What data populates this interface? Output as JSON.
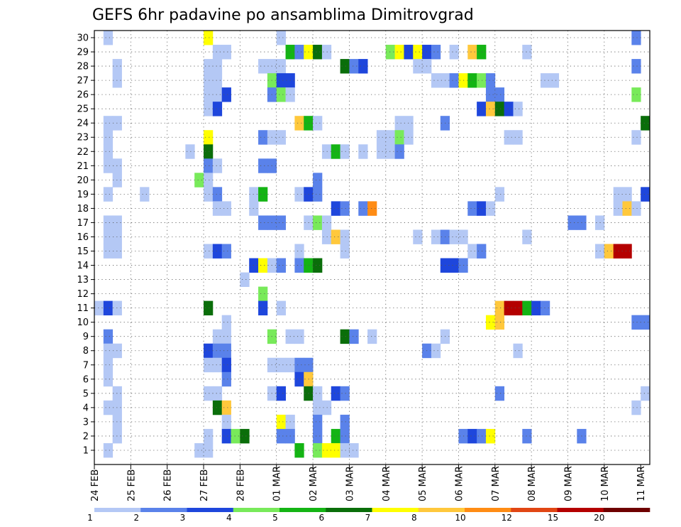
{
  "chart_data": {
    "type": "heatmap",
    "title": "GEFS 6hr padavine po ansamblima Dimitrovgrad",
    "xlabel": "",
    "ylabel": "",
    "x_tick_labels": [
      "24 FEB",
      "25 FEB",
      "26 FEB",
      "27 FEB",
      "28 FEB",
      "01 MAR",
      "02 MAR",
      "03 MAR",
      "04 MAR",
      "05 MAR",
      "06 MAR",
      "07 MAR",
      "08 MAR",
      "09 MAR",
      "10 MAR",
      "11 MAR"
    ],
    "y_tick_labels": [
      "1",
      "2",
      "3",
      "4",
      "5",
      "6",
      "7",
      "8",
      "9",
      "10",
      "11",
      "12",
      "13",
      "14",
      "15",
      "16",
      "17",
      "18",
      "19",
      "20",
      "21",
      "22",
      "23",
      "24",
      "25",
      "26",
      "27",
      "28",
      "29",
      "30"
    ],
    "y_range": [
      0,
      30
    ],
    "x_steps_6h": 61,
    "grid": "dotted",
    "colorbar": {
      "labels": [
        "1",
        "2",
        "3",
        "4",
        "5",
        "6",
        "7",
        "8",
        "10",
        "12",
        "15",
        "20"
      ],
      "colors": [
        "#b4c8f5",
        "#5a82ea",
        "#1e46dc",
        "#78ea5a",
        "#14b414",
        "#0a6e0a",
        "#ffff00",
        "#ffc83c",
        "#ff8c14",
        "#e14614",
        "#b40000",
        "#6e0000"
      ]
    },
    "levels": [
      "#ffffff",
      "#b4c8f5",
      "#5a82ea",
      "#1e46dc",
      "#78ea5a",
      "#14b414",
      "#0a6e0a",
      "#ffff00",
      "#ffc83c",
      "#ff8c14",
      "#e14614",
      "#b40000",
      "#6e0000"
    ],
    "cells": [
      [
        30,
        1,
        1
      ],
      [
        30,
        12,
        7
      ],
      [
        30,
        20,
        1
      ],
      [
        30,
        59,
        2
      ],
      [
        29,
        13,
        1
      ],
      [
        29,
        14,
        1
      ],
      [
        29,
        21,
        5
      ],
      [
        29,
        22,
        2
      ],
      [
        29,
        23,
        7
      ],
      [
        29,
        24,
        6
      ],
      [
        29,
        25,
        1
      ],
      [
        29,
        32,
        4
      ],
      [
        29,
        33,
        7
      ],
      [
        29,
        34,
        3
      ],
      [
        29,
        35,
        7
      ],
      [
        29,
        36,
        3
      ],
      [
        29,
        37,
        2
      ],
      [
        29,
        39,
        1
      ],
      [
        29,
        41,
        8
      ],
      [
        29,
        42,
        5
      ],
      [
        29,
        47,
        1
      ],
      [
        28,
        2,
        1
      ],
      [
        28,
        12,
        1
      ],
      [
        28,
        13,
        1
      ],
      [
        28,
        18,
        1
      ],
      [
        28,
        19,
        1
      ],
      [
        28,
        20,
        1
      ],
      [
        28,
        27,
        6
      ],
      [
        28,
        28,
        2
      ],
      [
        28,
        29,
        3
      ],
      [
        28,
        35,
        1
      ],
      [
        28,
        36,
        1
      ],
      [
        28,
        59,
        2
      ],
      [
        27,
        2,
        1
      ],
      [
        27,
        12,
        1
      ],
      [
        27,
        13,
        1
      ],
      [
        27,
        19,
        4
      ],
      [
        27,
        20,
        3
      ],
      [
        27,
        21,
        3
      ],
      [
        27,
        37,
        1
      ],
      [
        27,
        38,
        1
      ],
      [
        27,
        39,
        2
      ],
      [
        27,
        40,
        7
      ],
      [
        27,
        41,
        5
      ],
      [
        27,
        42,
        4
      ],
      [
        27,
        43,
        2
      ],
      [
        27,
        49,
        1
      ],
      [
        27,
        50,
        1
      ],
      [
        26,
        12,
        1
      ],
      [
        26,
        13,
        1
      ],
      [
        26,
        14,
        3
      ],
      [
        26,
        19,
        2
      ],
      [
        26,
        20,
        4
      ],
      [
        26,
        21,
        1
      ],
      [
        26,
        43,
        2
      ],
      [
        26,
        44,
        2
      ],
      [
        26,
        59,
        4
      ],
      [
        25,
        12,
        1
      ],
      [
        25,
        13,
        3
      ],
      [
        25,
        42,
        3
      ],
      [
        25,
        43,
        8
      ],
      [
        25,
        44,
        6
      ],
      [
        25,
        45,
        3
      ],
      [
        25,
        46,
        1
      ],
      [
        24,
        1,
        1
      ],
      [
        24,
        2,
        1
      ],
      [
        24,
        22,
        8
      ],
      [
        24,
        23,
        5
      ],
      [
        24,
        24,
        1
      ],
      [
        24,
        33,
        1
      ],
      [
        24,
        34,
        1
      ],
      [
        24,
        38,
        2
      ],
      [
        24,
        60,
        6
      ],
      [
        23,
        1,
        1
      ],
      [
        23,
        12,
        7
      ],
      [
        23,
        18,
        2
      ],
      [
        23,
        19,
        1
      ],
      [
        23,
        20,
        1
      ],
      [
        23,
        31,
        1
      ],
      [
        23,
        32,
        1
      ],
      [
        23,
        33,
        4
      ],
      [
        23,
        34,
        1
      ],
      [
        23,
        45,
        1
      ],
      [
        23,
        46,
        1
      ],
      [
        23,
        59,
        1
      ],
      [
        22,
        1,
        1
      ],
      [
        22,
        10,
        1
      ],
      [
        22,
        12,
        6
      ],
      [
        22,
        25,
        1
      ],
      [
        22,
        26,
        5
      ],
      [
        22,
        27,
        1
      ],
      [
        22,
        29,
        1
      ],
      [
        22,
        31,
        1
      ],
      [
        22,
        32,
        1
      ],
      [
        22,
        33,
        2
      ],
      [
        21,
        1,
        1
      ],
      [
        21,
        2,
        1
      ],
      [
        21,
        12,
        2
      ],
      [
        21,
        13,
        1
      ],
      [
        21,
        18,
        2
      ],
      [
        21,
        19,
        2
      ],
      [
        20,
        2,
        1
      ],
      [
        20,
        11,
        4
      ],
      [
        20,
        12,
        1
      ],
      [
        20,
        24,
        2
      ],
      [
        19,
        1,
        1
      ],
      [
        19,
        5,
        1
      ],
      [
        19,
        12,
        1
      ],
      [
        19,
        13,
        2
      ],
      [
        19,
        17,
        1
      ],
      [
        19,
        18,
        5
      ],
      [
        19,
        22,
        1
      ],
      [
        19,
        23,
        3
      ],
      [
        19,
        24,
        2
      ],
      [
        19,
        44,
        1
      ],
      [
        19,
        57,
        1
      ],
      [
        19,
        58,
        1
      ],
      [
        19,
        60,
        3
      ],
      [
        18,
        13,
        1
      ],
      [
        18,
        14,
        1
      ],
      [
        18,
        17,
        1
      ],
      [
        18,
        26,
        3
      ],
      [
        18,
        27,
        2
      ],
      [
        18,
        29,
        2
      ],
      [
        18,
        30,
        9
      ],
      [
        18,
        41,
        2
      ],
      [
        18,
        42,
        3
      ],
      [
        18,
        43,
        1
      ],
      [
        18,
        57,
        1
      ],
      [
        18,
        58,
        8
      ],
      [
        18,
        59,
        1
      ],
      [
        17,
        1,
        1
      ],
      [
        17,
        2,
        1
      ],
      [
        17,
        18,
        2
      ],
      [
        17,
        19,
        2
      ],
      [
        17,
        20,
        2
      ],
      [
        17,
        23,
        1
      ],
      [
        17,
        24,
        4
      ],
      [
        17,
        25,
        1
      ],
      [
        17,
        52,
        2
      ],
      [
        17,
        53,
        2
      ],
      [
        17,
        55,
        1
      ],
      [
        16,
        1,
        1
      ],
      [
        16,
        2,
        1
      ],
      [
        16,
        25,
        1
      ],
      [
        16,
        26,
        8
      ],
      [
        16,
        27,
        1
      ],
      [
        16,
        35,
        1
      ],
      [
        16,
        37,
        1
      ],
      [
        16,
        38,
        2
      ],
      [
        16,
        39,
        1
      ],
      [
        16,
        40,
        1
      ],
      [
        16,
        47,
        1
      ],
      [
        15,
        1,
        1
      ],
      [
        15,
        2,
        1
      ],
      [
        15,
        12,
        1
      ],
      [
        15,
        13,
        3
      ],
      [
        15,
        14,
        2
      ],
      [
        15,
        22,
        1
      ],
      [
        15,
        27,
        1
      ],
      [
        15,
        41,
        1
      ],
      [
        15,
        42,
        2
      ],
      [
        15,
        55,
        1
      ],
      [
        15,
        56,
        8
      ],
      [
        15,
        57,
        11
      ],
      [
        15,
        58,
        11
      ],
      [
        14,
        17,
        3
      ],
      [
        14,
        18,
        7
      ],
      [
        14,
        19,
        1
      ],
      [
        14,
        20,
        2
      ],
      [
        14,
        22,
        2
      ],
      [
        14,
        23,
        5
      ],
      [
        14,
        24,
        6
      ],
      [
        14,
        38,
        3
      ],
      [
        14,
        39,
        3
      ],
      [
        14,
        40,
        2
      ],
      [
        13,
        16,
        1
      ],
      [
        12,
        18,
        4
      ],
      [
        11,
        0,
        1
      ],
      [
        11,
        1,
        3
      ],
      [
        11,
        2,
        1
      ],
      [
        11,
        12,
        6
      ],
      [
        11,
        18,
        3
      ],
      [
        11,
        20,
        1
      ],
      [
        11,
        44,
        8
      ],
      [
        11,
        45,
        11
      ],
      [
        11,
        46,
        11
      ],
      [
        11,
        47,
        5
      ],
      [
        11,
        48,
        3
      ],
      [
        11,
        49,
        2
      ],
      [
        10,
        14,
        1
      ],
      [
        10,
        43,
        7
      ],
      [
        10,
        44,
        8
      ],
      [
        10,
        59,
        2
      ],
      [
        10,
        60,
        2
      ],
      [
        9,
        1,
        2
      ],
      [
        9,
        13,
        1
      ],
      [
        9,
        14,
        1
      ],
      [
        9,
        19,
        4
      ],
      [
        9,
        21,
        1
      ],
      [
        9,
        22,
        1
      ],
      [
        9,
        27,
        6
      ],
      [
        9,
        28,
        2
      ],
      [
        9,
        30,
        1
      ],
      [
        9,
        38,
        1
      ],
      [
        8,
        1,
        1
      ],
      [
        8,
        2,
        1
      ],
      [
        8,
        12,
        3
      ],
      [
        8,
        13,
        2
      ],
      [
        8,
        14,
        2
      ],
      [
        8,
        36,
        2
      ],
      [
        8,
        37,
        1
      ],
      [
        8,
        46,
        1
      ],
      [
        7,
        1,
        1
      ],
      [
        7,
        12,
        1
      ],
      [
        7,
        13,
        1
      ],
      [
        7,
        14,
        3
      ],
      [
        7,
        19,
        1
      ],
      [
        7,
        20,
        1
      ],
      [
        7,
        21,
        1
      ],
      [
        7,
        22,
        2
      ],
      [
        7,
        23,
        2
      ],
      [
        6,
        1,
        1
      ],
      [
        6,
        14,
        2
      ],
      [
        6,
        22,
        3
      ],
      [
        6,
        23,
        8
      ],
      [
        5,
        2,
        1
      ],
      [
        5,
        12,
        1
      ],
      [
        5,
        13,
        1
      ],
      [
        5,
        19,
        1
      ],
      [
        5,
        20,
        3
      ],
      [
        5,
        23,
        6
      ],
      [
        5,
        24,
        1
      ],
      [
        5,
        26,
        3
      ],
      [
        5,
        27,
        2
      ],
      [
        5,
        44,
        2
      ],
      [
        5,
        60,
        1
      ],
      [
        4,
        1,
        1
      ],
      [
        4,
        2,
        1
      ],
      [
        4,
        13,
        6
      ],
      [
        4,
        14,
        8
      ],
      [
        4,
        24,
        1
      ],
      [
        4,
        25,
        1
      ],
      [
        4,
        59,
        1
      ],
      [
        3,
        2,
        1
      ],
      [
        3,
        14,
        1
      ],
      [
        3,
        20,
        7
      ],
      [
        3,
        21,
        1
      ],
      [
        3,
        24,
        2
      ],
      [
        3,
        27,
        2
      ],
      [
        2,
        2,
        1
      ],
      [
        2,
        12,
        1
      ],
      [
        2,
        14,
        3
      ],
      [
        2,
        15,
        4
      ],
      [
        2,
        16,
        6
      ],
      [
        2,
        20,
        2
      ],
      [
        2,
        21,
        2
      ],
      [
        2,
        24,
        2
      ],
      [
        2,
        26,
        5
      ],
      [
        2,
        27,
        2
      ],
      [
        2,
        40,
        2
      ],
      [
        2,
        41,
        3
      ],
      [
        2,
        42,
        2
      ],
      [
        2,
        43,
        7
      ],
      [
        2,
        47,
        2
      ],
      [
        2,
        53,
        2
      ],
      [
        1,
        1,
        1
      ],
      [
        1,
        11,
        1
      ],
      [
        1,
        12,
        1
      ],
      [
        1,
        22,
        5
      ],
      [
        1,
        24,
        4
      ],
      [
        1,
        25,
        7
      ],
      [
        1,
        26,
        7
      ],
      [
        1,
        27,
        1
      ],
      [
        1,
        28,
        1
      ]
    ]
  }
}
